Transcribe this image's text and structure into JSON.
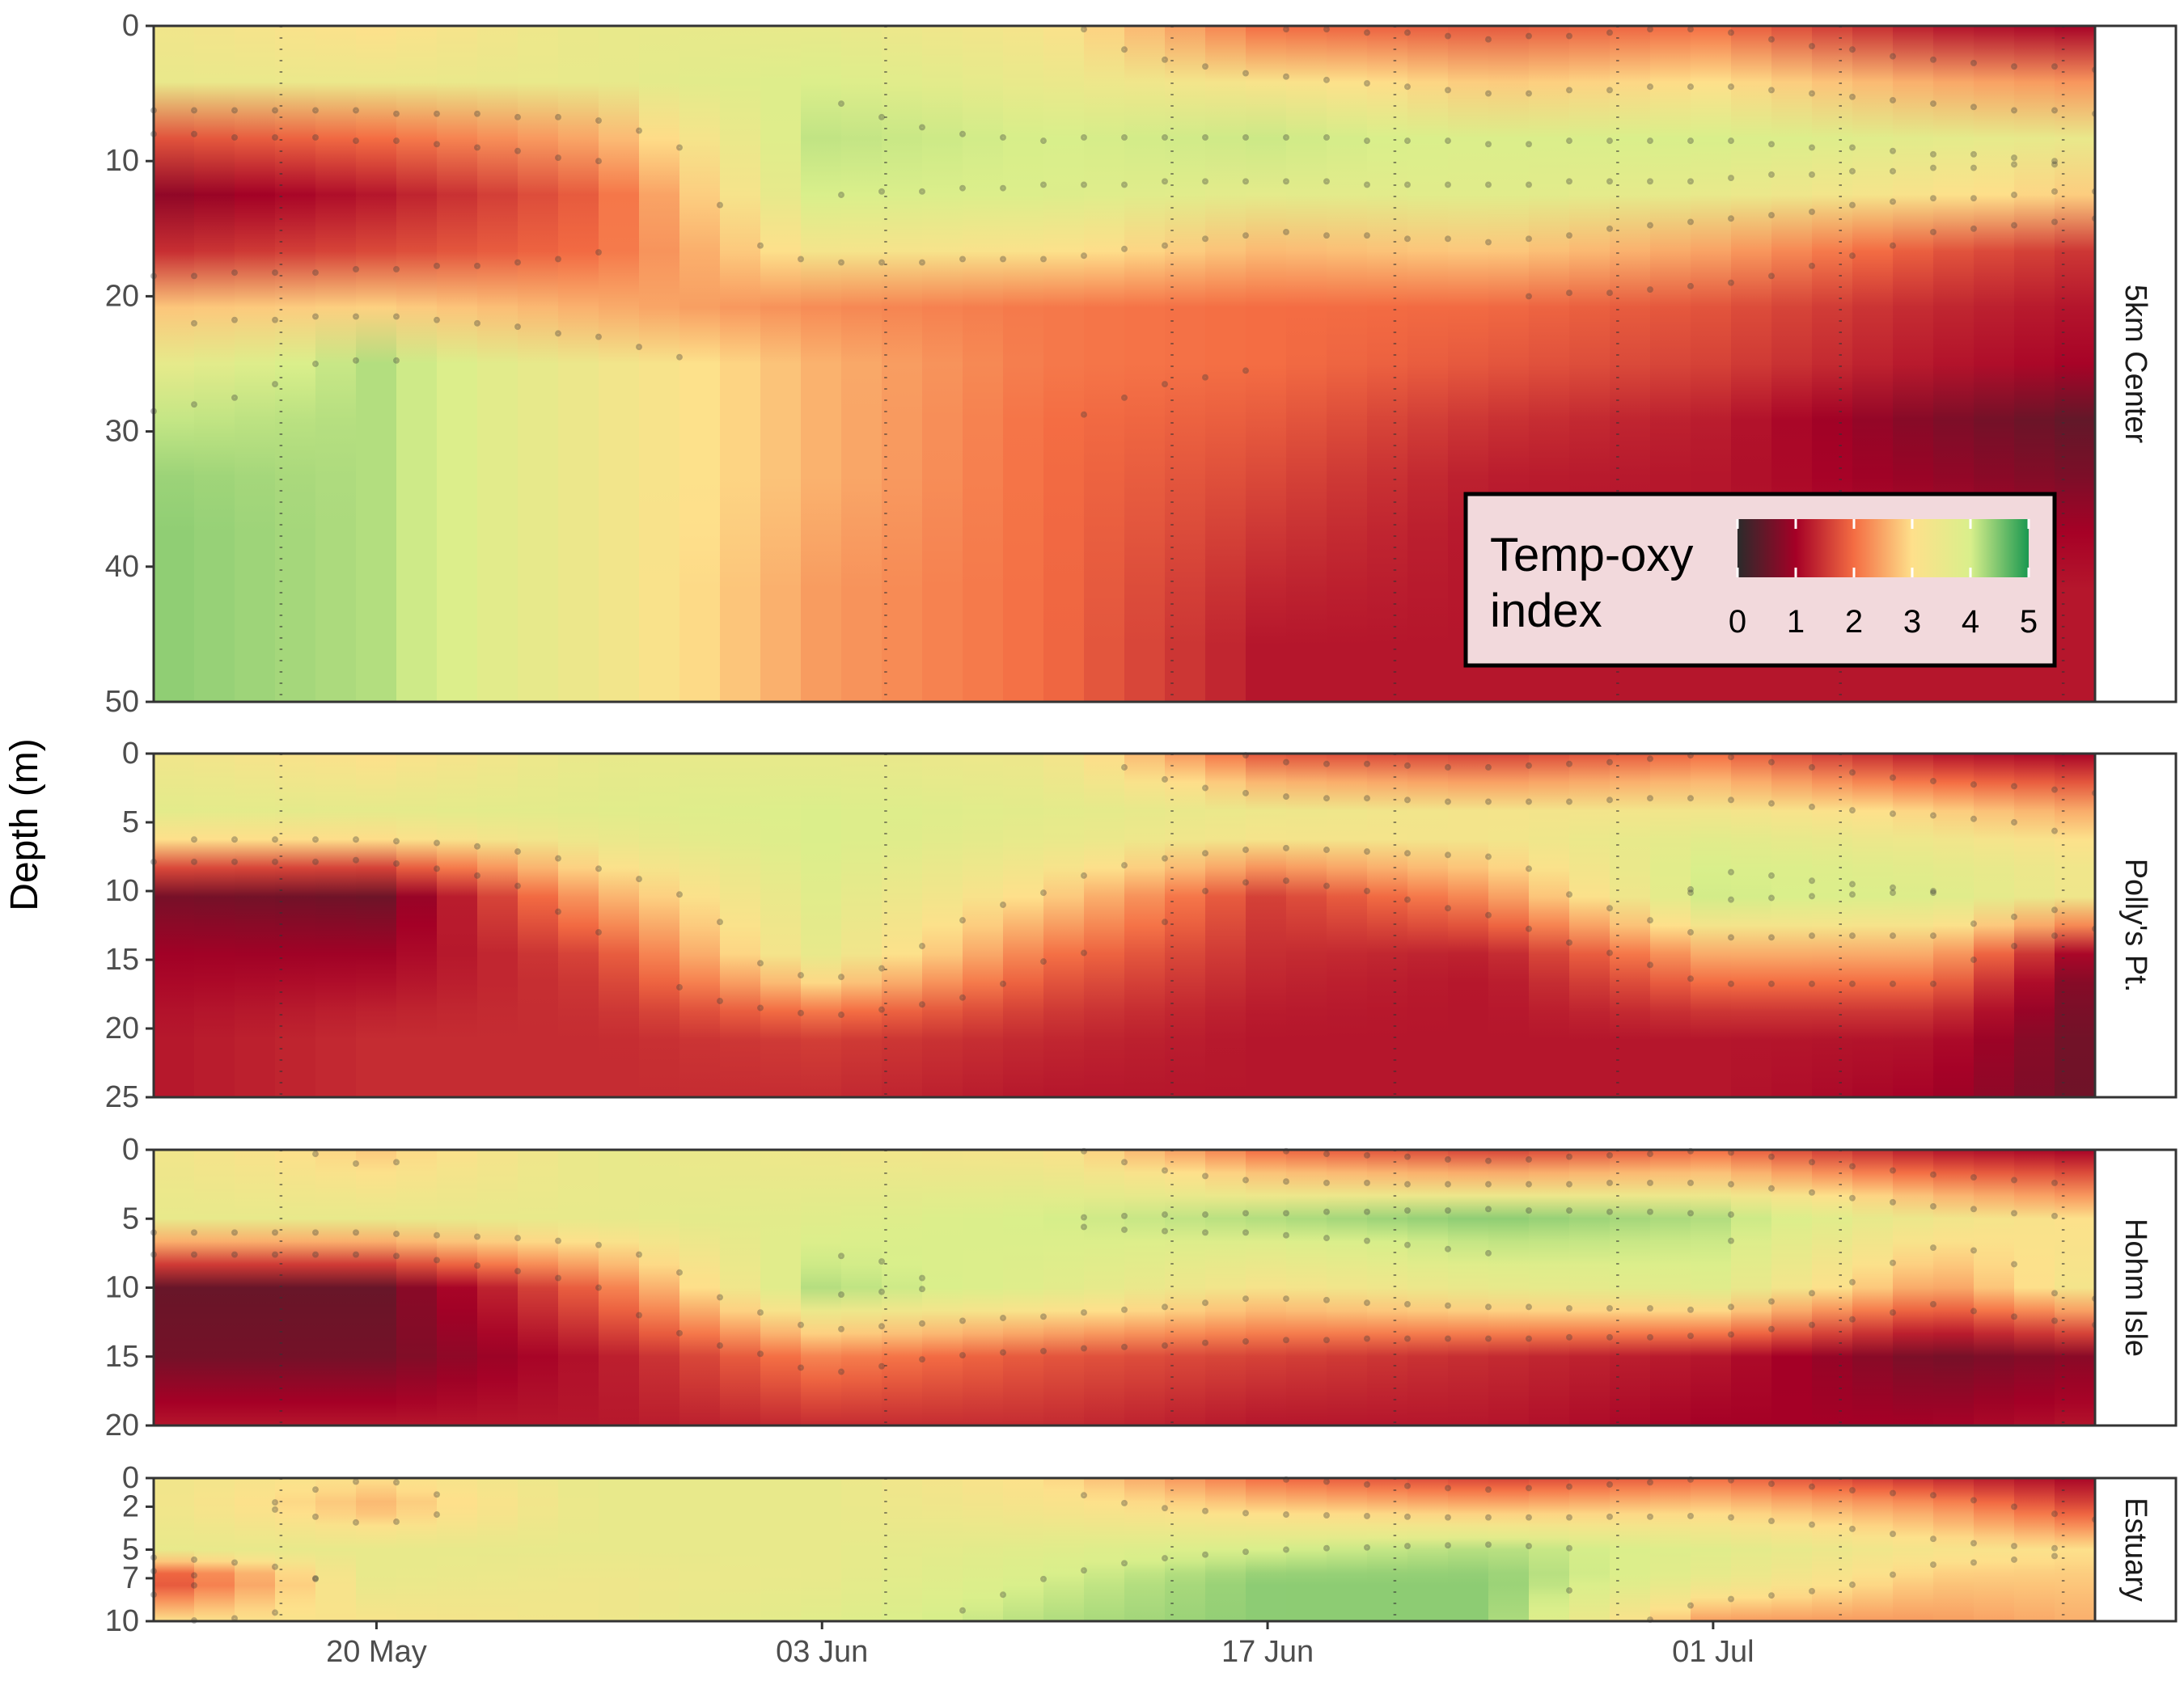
{
  "chart_data": {
    "type": "heatmap",
    "ylabel": "Depth (m)",
    "xlabel": "",
    "x_ticks": [
      {
        "label": "20 May",
        "date": "2021-05-20"
      },
      {
        "label": "03 Jun",
        "date": "2021-06-03"
      },
      {
        "label": "17 Jun",
        "date": "2021-06-17"
      },
      {
        "label": "01 Jul",
        "date": "2021-07-01"
      }
    ],
    "xlim": [
      "2021-05-13",
      "2021-07-13"
    ],
    "sampling_dates": [
      "2021-05-17",
      "2021-06-05",
      "2021-06-14",
      "2021-06-21",
      "2021-06-28",
      "2021-07-05",
      "2021-07-12"
    ],
    "colorbar": {
      "title": "Temp-oxy index",
      "title_lines": [
        "Temp-oxy",
        "index"
      ],
      "range": [
        0,
        5
      ],
      "ticks": [
        0,
        1,
        2,
        3,
        4,
        5
      ],
      "palette": [
        "#2b2b2b",
        "#a50026",
        "#f46d43",
        "#fee08b",
        "#d9ef8b",
        "#1a9850"
      ],
      "position": "bottom-right of top panel"
    },
    "panels": [
      {
        "name": "5km Center",
        "ylim": [
          50,
          0
        ],
        "y_ticks": [
          0,
          10,
          20,
          30,
          40,
          50
        ],
        "depths": [
          0,
          5,
          10,
          15,
          20,
          25,
          30,
          35,
          40,
          45,
          50
        ],
        "values": [
          {
            "date": "2021-05-13",
            "index": [
              3.4,
              3.6,
              0.8,
              0.8,
              2.6,
              3.6,
              4.2,
              4.4,
              4.4,
              4.4,
              4.4
            ]
          },
          {
            "date": "2021-05-20",
            "index": [
              3.0,
              3.6,
              1.2,
              1.2,
              2.6,
              4.2,
              4.2,
              4.2,
              4.2,
              4.2,
              4.2
            ]
          },
          {
            "date": "2021-05-27",
            "index": [
              3.6,
              3.6,
              2.0,
              1.8,
              2.4,
              3.4,
              3.4,
              3.4,
              3.4,
              3.4,
              3.4
            ]
          },
          {
            "date": "2021-06-03",
            "index": [
              3.6,
              4.0,
              4.2,
              3.8,
              2.2,
              2.6,
              2.6,
              2.6,
              2.4,
              2.4,
              2.4
            ]
          },
          {
            "date": "2021-06-10",
            "index": [
              3.2,
              3.6,
              4.2,
              3.6,
              2.1,
              2.1,
              2.0,
              2.0,
              2.0,
              2.0,
              2.0
            ]
          },
          {
            "date": "2021-06-17",
            "index": [
              2.0,
              3.4,
              4.4,
              3.0,
              2.0,
              2.0,
              1.8,
              1.6,
              1.4,
              1.2,
              1.2
            ]
          },
          {
            "date": "2021-06-24",
            "index": [
              1.8,
              3.0,
              4.4,
              3.2,
              2.0,
              1.8,
              1.4,
              1.2,
              1.2,
              1.2,
              1.2
            ]
          },
          {
            "date": "2021-07-01",
            "index": [
              2.0,
              3.2,
              4.4,
              2.8,
              1.8,
              1.6,
              1.2,
              1.2,
              1.2,
              1.2,
              1.2
            ]
          },
          {
            "date": "2021-07-08",
            "index": [
              1.2,
              2.8,
              4.2,
              2.0,
              1.4,
              1.2,
              0.6,
              1.0,
              1.2,
              1.2,
              1.2
            ]
          },
          {
            "date": "2021-07-13",
            "index": [
              1.0,
              2.6,
              4.0,
              1.6,
              1.2,
              1.0,
              0.3,
              0.8,
              1.2,
              1.2,
              1.2
            ]
          }
        ]
      },
      {
        "name": "Polly's Pt.",
        "ylim": [
          25,
          0
        ],
        "y_ticks": [
          0,
          5,
          10,
          15,
          20,
          25
        ],
        "depths": [
          0,
          5,
          10,
          15,
          20,
          25
        ],
        "values": [
          {
            "date": "2021-05-13",
            "index": [
              3.4,
              3.8,
              0.6,
              1.0,
              1.2,
              1.2
            ]
          },
          {
            "date": "2021-05-20",
            "index": [
              3.0,
              3.8,
              0.5,
              1.0,
              1.4,
              1.4
            ]
          },
          {
            "date": "2021-05-27",
            "index": [
              3.6,
              3.8,
              2.6,
              1.6,
              1.4,
              1.4
            ]
          },
          {
            "date": "2021-06-03",
            "index": [
              3.6,
              4.0,
              3.8,
              3.6,
              1.6,
              1.4
            ]
          },
          {
            "date": "2021-06-10",
            "index": [
              3.4,
              3.8,
              3.0,
              2.0,
              1.4,
              1.2
            ]
          },
          {
            "date": "2021-06-17",
            "index": [
              1.8,
              3.8,
              1.6,
              1.4,
              1.2,
              1.2
            ]
          },
          {
            "date": "2021-06-24",
            "index": [
              1.6,
              3.6,
              2.4,
              1.2,
              1.2,
              1.2
            ]
          },
          {
            "date": "2021-07-01",
            "index": [
              2.0,
              3.6,
              4.2,
              2.4,
              1.2,
              1.2
            ]
          },
          {
            "date": "2021-07-08",
            "index": [
              1.2,
              3.2,
              4.0,
              2.4,
              1.2,
              1.0
            ]
          },
          {
            "date": "2021-07-13",
            "index": [
              1.0,
              2.8,
              3.6,
              0.6,
              0.5,
              0.5
            ]
          }
        ]
      },
      {
        "name": "Hohm Isle",
        "ylim": [
          20,
          0
        ],
        "y_ticks": [
          0,
          5,
          10,
          15,
          20
        ],
        "depths": [
          0,
          5,
          10,
          15,
          20
        ],
        "values": [
          {
            "date": "2021-05-13",
            "index": [
              3.4,
              3.6,
              0.5,
              0.6,
              1.2
            ]
          },
          {
            "date": "2021-05-20",
            "index": [
              2.8,
              3.6,
              0.5,
              0.6,
              1.2
            ]
          },
          {
            "date": "2021-05-27",
            "index": [
              3.6,
              3.6,
              2.0,
              1.2,
              1.2
            ]
          },
          {
            "date": "2021-06-03",
            "index": [
              3.4,
              3.8,
              4.2,
              2.2,
              1.4
            ]
          },
          {
            "date": "2021-06-10",
            "index": [
              3.2,
              4.0,
              3.8,
              1.8,
              1.4
            ]
          },
          {
            "date": "2021-06-17",
            "index": [
              2.0,
              4.2,
              3.2,
              1.6,
              1.2
            ]
          },
          {
            "date": "2021-06-24",
            "index": [
              1.6,
              4.4,
              3.6,
              1.4,
              1.2
            ]
          },
          {
            "date": "2021-07-01",
            "index": [
              2.0,
              4.2,
              3.8,
              1.2,
              1.0
            ]
          },
          {
            "date": "2021-07-08",
            "index": [
              1.2,
              3.4,
              2.4,
              0.6,
              1.0
            ]
          },
          {
            "date": "2021-07-13",
            "index": [
              1.0,
              3.0,
              3.4,
              0.8,
              1.2
            ]
          }
        ]
      },
      {
        "name": "Estuary",
        "ylim": [
          10,
          0
        ],
        "y_ticks": [
          0,
          2,
          5,
          7,
          10
        ],
        "depths": [
          0,
          2,
          5,
          7,
          10
        ],
        "values": [
          {
            "date": "2021-05-13",
            "index": [
              3.4,
              3.4,
              3.6,
              1.4,
              3.0
            ]
          },
          {
            "date": "2021-05-20",
            "index": [
              3.0,
              2.6,
              3.6,
              3.6,
              3.2
            ]
          },
          {
            "date": "2021-05-27",
            "index": [
              3.6,
              3.6,
              3.6,
              3.4,
              3.4
            ]
          },
          {
            "date": "2021-06-03",
            "index": [
              3.6,
              3.6,
              3.6,
              3.6,
              3.8
            ]
          },
          {
            "date": "2021-06-10",
            "index": [
              3.0,
              3.2,
              3.8,
              4.0,
              4.2
            ]
          },
          {
            "date": "2021-06-17",
            "index": [
              2.0,
              2.8,
              4.0,
              4.4,
              4.4
            ]
          },
          {
            "date": "2021-06-24",
            "index": [
              1.6,
              2.6,
              4.2,
              4.4,
              4.4
            ]
          },
          {
            "date": "2021-07-01",
            "index": [
              2.0,
              2.8,
              3.8,
              3.6,
              2.4
            ]
          },
          {
            "date": "2021-07-08",
            "index": [
              1.4,
              2.4,
              3.2,
              2.8,
              2.4
            ]
          },
          {
            "date": "2021-07-13",
            "index": [
              1.0,
              1.6,
              3.0,
              2.8,
              2.6
            ]
          }
        ]
      }
    ]
  }
}
